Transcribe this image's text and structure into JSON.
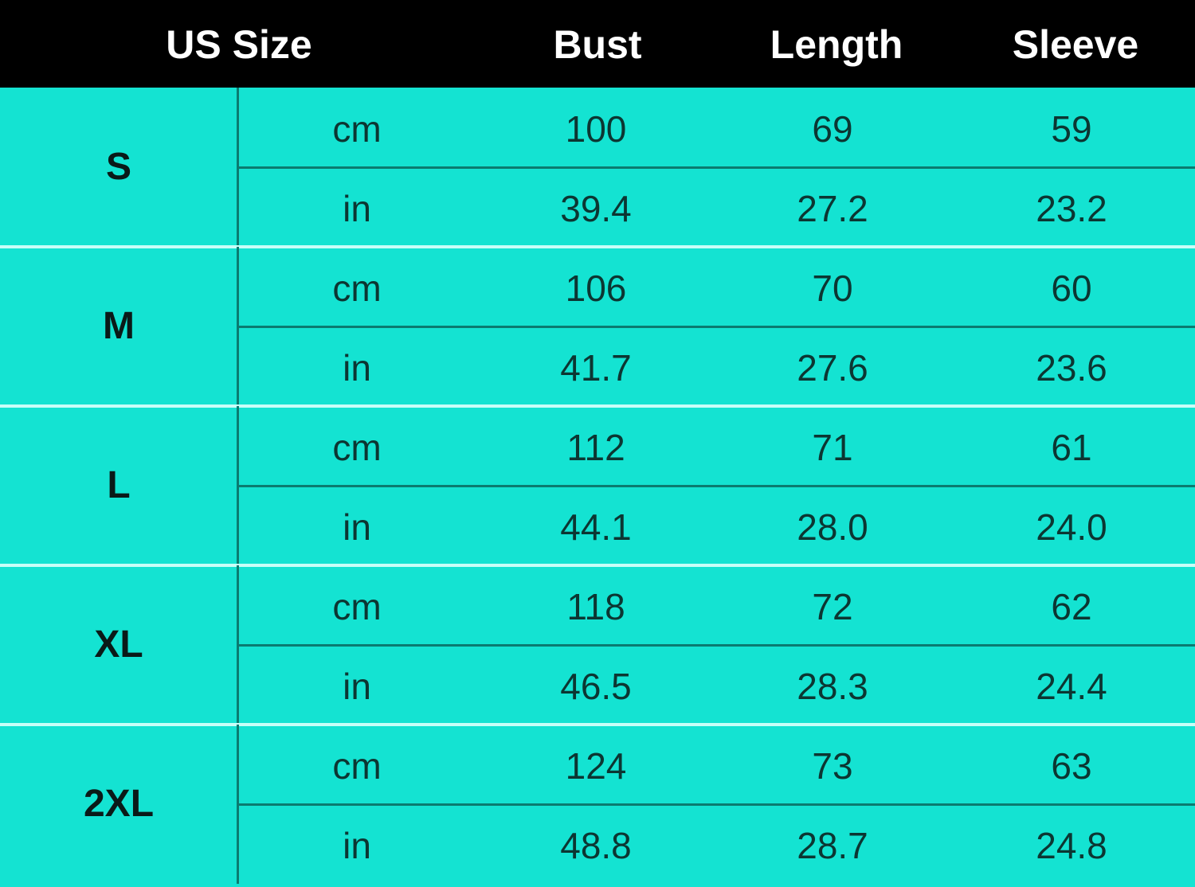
{
  "header": {
    "size": "US Size",
    "bust": "Bust",
    "length": "Length",
    "sleeve": "Sleeve"
  },
  "colors": {
    "header_bg": "#000000",
    "table_bg": "#14e3d2",
    "grid": "#0b7b70",
    "group_separator": "#c8fff8"
  },
  "rows": [
    {
      "size": "S",
      "cm": {
        "unit": "cm",
        "bust": "100",
        "length": "69",
        "sleeve": "59"
      },
      "in": {
        "unit": "in",
        "bust": "39.4",
        "length": "27.2",
        "sleeve": "23.2"
      }
    },
    {
      "size": "M",
      "cm": {
        "unit": "cm",
        "bust": "106",
        "length": "70",
        "sleeve": "60"
      },
      "in": {
        "unit": "in",
        "bust": "41.7",
        "length": "27.6",
        "sleeve": "23.6"
      }
    },
    {
      "size": "L",
      "cm": {
        "unit": "cm",
        "bust": "112",
        "length": "71",
        "sleeve": "61"
      },
      "in": {
        "unit": "in",
        "bust": "44.1",
        "length": "28.0",
        "sleeve": "24.0"
      }
    },
    {
      "size": "XL",
      "cm": {
        "unit": "cm",
        "bust": "118",
        "length": "72",
        "sleeve": "62"
      },
      "in": {
        "unit": "in",
        "bust": "46.5",
        "length": "28.3",
        "sleeve": "24.4"
      }
    },
    {
      "size": "2XL",
      "cm": {
        "unit": "cm",
        "bust": "124",
        "length": "73",
        "sleeve": "63"
      },
      "in": {
        "unit": "in",
        "bust": "48.8",
        "length": "28.7",
        "sleeve": "24.8"
      }
    }
  ]
}
